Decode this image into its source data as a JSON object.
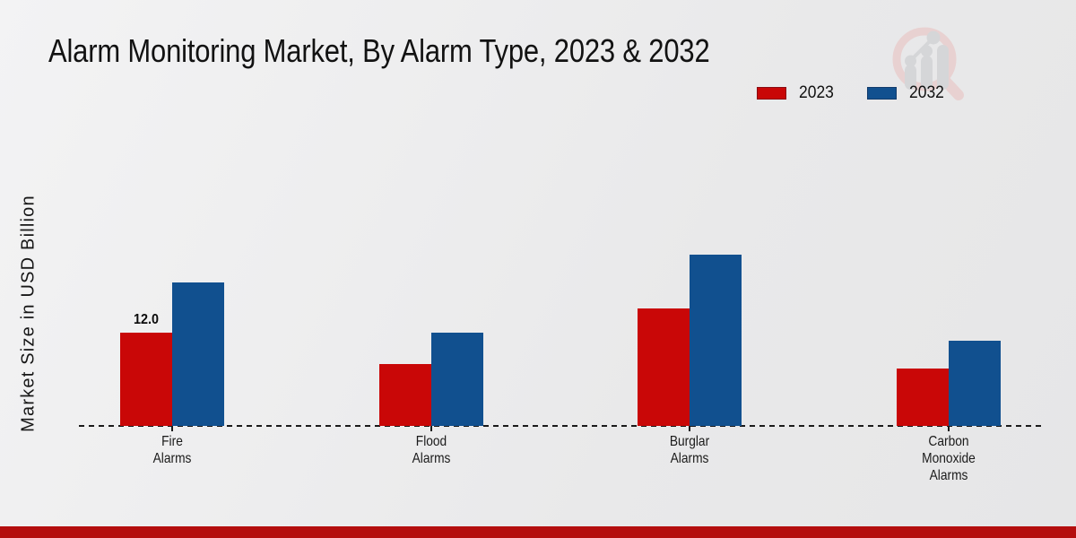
{
  "title": "Alarm Monitoring Market, By Alarm Type, 2023 & 2032",
  "ylabel": "Market Size in USD Billion",
  "colors": {
    "series_2023": "#c90707",
    "series_2032": "#11508f",
    "footer_bar": "#b40e0e",
    "baseline": "#1a1a1a",
    "background_light": "#f3f3f4",
    "background_dark": "#e6e6e7",
    "title_text": "#121212"
  },
  "icons": {
    "watermark": "magnifier-bar-chart-logo"
  },
  "legend": {
    "position": "top-right",
    "items": [
      {
        "label": "2023",
        "color": "#c90707"
      },
      {
        "label": "2032",
        "color": "#11508f"
      }
    ]
  },
  "chart_data": {
    "type": "bar",
    "title": "Alarm Monitoring Market, By Alarm Type, 2023 & 2032",
    "xlabel": "",
    "ylabel": "Market Size in USD Billion",
    "categories": [
      "Fire Alarms",
      "Flood Alarms",
      "Burglar Alarms",
      "Carbon Monoxide Alarms"
    ],
    "category_label_lines": [
      [
        "Fire",
        "Alarms"
      ],
      [
        "Flood",
        "Alarms"
      ],
      [
        "Burglar",
        "Alarms"
      ],
      [
        "Carbon",
        "Monoxide",
        "Alarms"
      ]
    ],
    "series": [
      {
        "name": "2023",
        "color": "#c90707",
        "values": [
          12.0,
          8.0,
          15.2,
          7.4
        ]
      },
      {
        "name": "2032",
        "color": "#11508f",
        "values": [
          18.5,
          12.0,
          22.1,
          11.0
        ]
      }
    ],
    "value_labels": [
      {
        "category_index": 0,
        "series_index": 0,
        "text": "12.0"
      }
    ],
    "ylim": [
      0,
      25
    ],
    "grid": false,
    "y_axis_ticks_visible": false,
    "baseline_style": "dashed",
    "legend_position": "top-right"
  }
}
